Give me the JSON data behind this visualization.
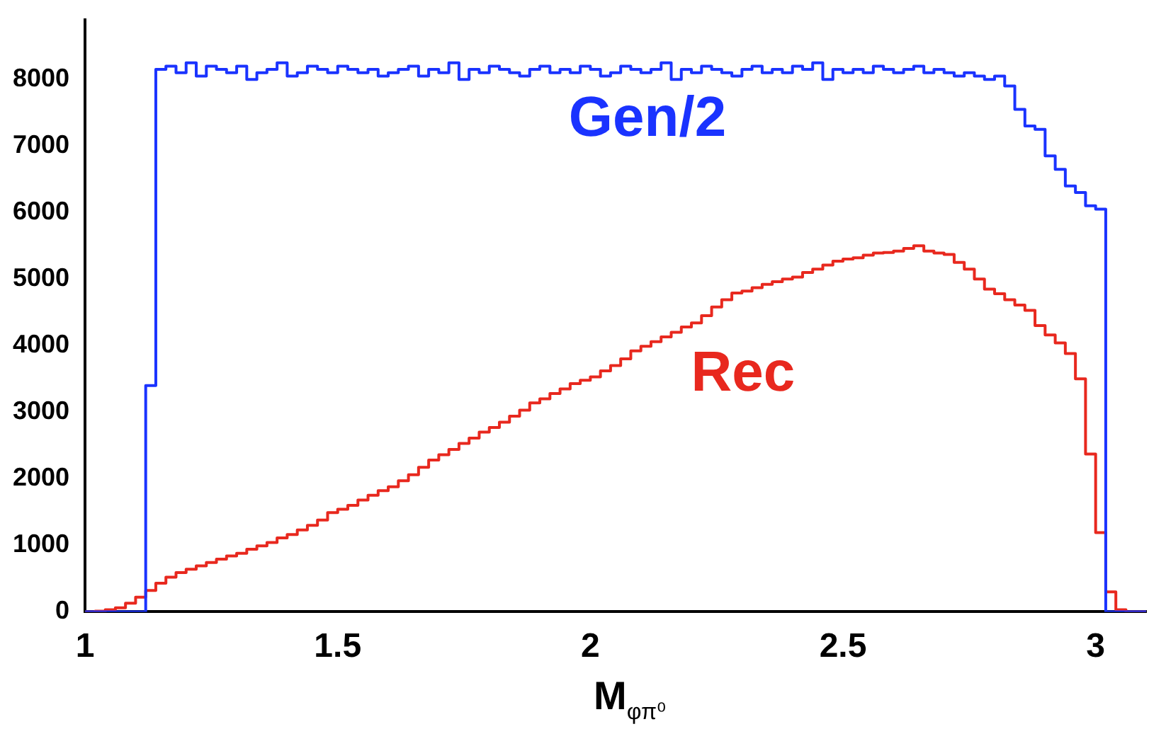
{
  "chart_data": {
    "type": "histogram",
    "xlabel": "M$_{φπ⁰}$",
    "bins": [
      1.0,
      1.02,
      1.04,
      1.06,
      1.08,
      1.1,
      1.12,
      1.14,
      1.16,
      1.18,
      1.2,
      1.22,
      1.24,
      1.26,
      1.28,
      1.3,
      1.32,
      1.34,
      1.36,
      1.38,
      1.4,
      1.42,
      1.44,
      1.46,
      1.48,
      1.5,
      1.52,
      1.54,
      1.56,
      1.58,
      1.6,
      1.62,
      1.64,
      1.66,
      1.68,
      1.7,
      1.72,
      1.74,
      1.76,
      1.78,
      1.8,
      1.82,
      1.84,
      1.86,
      1.88,
      1.9,
      1.92,
      1.94,
      1.96,
      1.98,
      2.0,
      2.02,
      2.04,
      2.06,
      2.08,
      2.1,
      2.12,
      2.14,
      2.16,
      2.18,
      2.2,
      2.22,
      2.24,
      2.26,
      2.28,
      2.3,
      2.32,
      2.34,
      2.36,
      2.38,
      2.4,
      2.42,
      2.44,
      2.46,
      2.48,
      2.5,
      2.52,
      2.54,
      2.56,
      2.58,
      2.6,
      2.62,
      2.64,
      2.66,
      2.68,
      2.7,
      2.72,
      2.74,
      2.76,
      2.78,
      2.8,
      2.82,
      2.84,
      2.86,
      2.88,
      2.9,
      2.92,
      2.94,
      2.96,
      2.98,
      3.0,
      3.02,
      3.04,
      3.06,
      3.08,
      3.1
    ],
    "series": [
      {
        "name": "Gen/2",
        "color": "#1a33ff",
        "values": [
          0,
          0,
          0,
          0,
          0,
          0,
          3400,
          8150,
          8200,
          8100,
          8250,
          8050,
          8200,
          8150,
          8100,
          8200,
          8000,
          8100,
          8150,
          8250,
          8050,
          8100,
          8200,
          8150,
          8100,
          8200,
          8150,
          8100,
          8150,
          8050,
          8100,
          8150,
          8200,
          8050,
          8150,
          8100,
          8250,
          8000,
          8150,
          8100,
          8200,
          8150,
          8100,
          8050,
          8150,
          8200,
          8100,
          8150,
          8100,
          8200,
          8150,
          8050,
          8100,
          8200,
          8150,
          8100,
          8150,
          8250,
          8000,
          8150,
          8100,
          8200,
          8150,
          8100,
          8050,
          8150,
          8200,
          8100,
          8150,
          8100,
          8200,
          8150,
          8250,
          8000,
          8150,
          8100,
          8150,
          8100,
          8200,
          8150,
          8100,
          8150,
          8200,
          8100,
          8150,
          8100,
          8050,
          8100,
          8050,
          8000,
          8050,
          7900,
          7550,
          7300,
          7250,
          6850,
          6650,
          6400,
          6300,
          6100,
          6050,
          0,
          0,
          0,
          0
        ]
      },
      {
        "name": "Rec",
        "color": "#e8281e",
        "values": [
          0,
          10,
          30,
          60,
          130,
          220,
          320,
          430,
          520,
          590,
          640,
          690,
          740,
          790,
          840,
          880,
          940,
          990,
          1040,
          1110,
          1160,
          1230,
          1300,
          1380,
          1490,
          1540,
          1600,
          1680,
          1750,
          1820,
          1880,
          1970,
          2060,
          2170,
          2280,
          2360,
          2440,
          2530,
          2610,
          2700,
          2770,
          2850,
          2940,
          3030,
          3140,
          3200,
          3280,
          3350,
          3430,
          3480,
          3530,
          3620,
          3700,
          3800,
          3920,
          3990,
          4060,
          4130,
          4200,
          4280,
          4340,
          4450,
          4580,
          4690,
          4790,
          4820,
          4870,
          4920,
          4960,
          5000,
          5030,
          5100,
          5150,
          5210,
          5270,
          5300,
          5320,
          5360,
          5390,
          5400,
          5420,
          5460,
          5500,
          5420,
          5390,
          5370,
          5250,
          5150,
          5000,
          4850,
          4780,
          4690,
          4610,
          4530,
          4300,
          4160,
          4040,
          3880,
          3500,
          2370,
          1190,
          300,
          30,
          0,
          0
        ]
      }
    ],
    "xlim": [
      1,
      3.1
    ],
    "xticks": [
      1,
      1.5,
      2,
      2.5,
      3
    ],
    "ylim": [
      0,
      8900
    ],
    "yticks": [
      0,
      1000,
      2000,
      3000,
      4000,
      5000,
      6000,
      7000,
      8000
    ],
    "grid": false,
    "legend": false
  }
}
